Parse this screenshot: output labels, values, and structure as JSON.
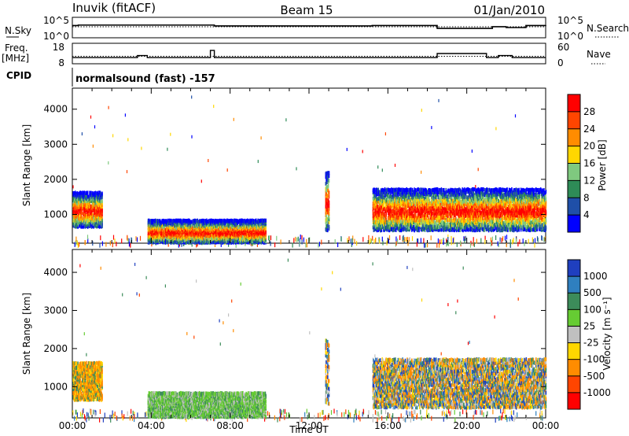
{
  "header": {
    "station": "Inuvik (fitACF)",
    "beam": "Beam 15",
    "date": "01/Jan/2010"
  },
  "summary_panels": {
    "nsky_label": "N.Sky",
    "nsky_ticks": [
      "10^5",
      "10^0"
    ],
    "nsearch_label": "N.Search",
    "nsearch_ticks": [
      "10^5",
      "10^0"
    ],
    "freq_label": "Freq.",
    "freq_unit": "[MHz]",
    "freq_ticks": [
      "18",
      "8"
    ],
    "nave_label": "Nave",
    "nave_ticks": [
      "60",
      "0"
    ],
    "cpid_label": "CPID",
    "cpid_text": "normalsound (fast) -157"
  },
  "chart_data": [
    {
      "type": "line",
      "name": "N.Sky / N.Search",
      "x_hours": [
        0,
        0.3,
        6.8,
        7.2,
        15.2,
        18.5,
        21.3,
        22.0,
        23.0,
        24.0
      ],
      "series": [
        {
          "label": "N.Sky",
          "style": "solid",
          "values": [
            3.0,
            3.1,
            3.1,
            2.9,
            3.0,
            2.3,
            2.7,
            2.5,
            3.0,
            3.1
          ]
        },
        {
          "label": "N.Search",
          "style": "dotted",
          "values": [
            2.7,
            2.7,
            2.7,
            2.7,
            2.7,
            2.7,
            2.7,
            2.7,
            2.7,
            2.7
          ]
        }
      ],
      "ylim": [
        0,
        5
      ]
    },
    {
      "type": "line",
      "name": "Freq / Nave",
      "x_hours": [
        0,
        1.5,
        3.3,
        3.8,
        6.7,
        7.0,
        7.2,
        9.8,
        15.3,
        18.5,
        21.0,
        21.6,
        22.3,
        24.0
      ],
      "freq_mhz": [
        11.0,
        11.0,
        12.0,
        11.0,
        11.0,
        14.5,
        11.0,
        11.0,
        11.0,
        13.0,
        11.0,
        12.0,
        11.0,
        11.0
      ],
      "nave": [
        22,
        22,
        22,
        22,
        22,
        22,
        22,
        22,
        22,
        22,
        22,
        22,
        22,
        22
      ],
      "freq_ylim": [
        8,
        18
      ],
      "nave_ylim": [
        0,
        60
      ]
    },
    {
      "type": "heatmap",
      "name": "Power",
      "xlabel": "",
      "ylabel": "Slant Range [km]",
      "xlim_hours": [
        0,
        24
      ],
      "ylim_km": [
        180,
        4600
      ],
      "yticks": [
        1000,
        2000,
        3000,
        4000
      ],
      "colorbar_label": "Power [dB]",
      "colorbar_ticks": [
        "28",
        "24",
        "20",
        "16",
        "12",
        "8",
        "4"
      ],
      "colorbar_colors": [
        "#ff0000",
        "#ff4500",
        "#ff8c00",
        "#ffd700",
        "#7fc97f",
        "#2e8b57",
        "#1f4fa8",
        "#0000ff"
      ],
      "regions": [
        {
          "t0": 0.0,
          "t1": 1.5,
          "r0": 700,
          "r1": 1700,
          "peak": 24
        },
        {
          "t0": 3.8,
          "t1": 9.8,
          "r0": 250,
          "r1": 900,
          "peak": 28
        },
        {
          "t0": 12.8,
          "t1": 13.0,
          "r0": 600,
          "r1": 2300,
          "peak": 14
        },
        {
          "t0": 15.2,
          "t1": 24.0,
          "r0": 600,
          "r1": 1800,
          "peak": 28
        }
      ]
    },
    {
      "type": "heatmap",
      "name": "Velocity",
      "xlabel": "Time UT",
      "ylabel": "Slant Range [km]",
      "xlim_hours": [
        0,
        24
      ],
      "xticks": [
        "00:00",
        "04:00",
        "08:00",
        "12:00",
        "16:00",
        "20:00",
        "00:00"
      ],
      "ylim_km": [
        180,
        4600
      ],
      "yticks": [
        1000,
        2000,
        3000,
        4000
      ],
      "colorbar_label": "Velocity [m s⁻¹]",
      "colorbar_ticks": [
        "1000",
        "500",
        "100",
        "25",
        "-25",
        "-100",
        "-500",
        "-1000"
      ],
      "colorbar_colors": [
        "#1f3fbf",
        "#2f7fbf",
        "#3c8c5a",
        "#66cc33",
        "#c0c0c0",
        "#ffd700",
        "#ff8c00",
        "#ff4500",
        "#ff0000"
      ],
      "regions": [
        {
          "t0": 0.0,
          "t1": 1.5,
          "r0": 700,
          "r1": 1700,
          "tone": "negative"
        },
        {
          "t0": 3.8,
          "t1": 9.8,
          "r0": 250,
          "r1": 900,
          "tone": "near-zero"
        },
        {
          "t0": 12.8,
          "t1": 13.0,
          "r0": 600,
          "r1": 2300,
          "tone": "mixed"
        },
        {
          "t0": 15.2,
          "t1": 24.0,
          "r0": 500,
          "r1": 1800,
          "tone": "mixed"
        }
      ]
    }
  ]
}
